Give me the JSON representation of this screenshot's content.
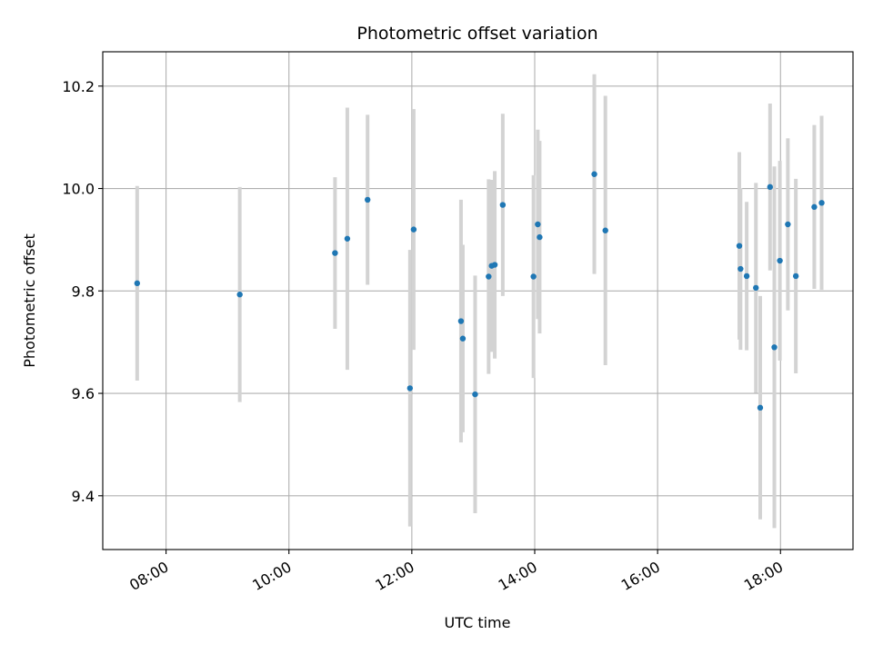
{
  "chart_data": {
    "type": "scatter",
    "title": "Photometric offset variation",
    "xlabel": "UTC time",
    "ylabel": "Photometric offset",
    "x_unit": "UTC time (hours)",
    "xlim": [
      6.97,
      19.18
    ],
    "ylim": [
      9.295,
      10.267
    ],
    "x_ticks": [
      8,
      10,
      12,
      14,
      16,
      18
    ],
    "x_tick_labels": [
      "08:00",
      "10:00",
      "12:00",
      "14:00",
      "16:00",
      "18:00"
    ],
    "y_ticks": [
      9.4,
      9.6,
      9.8,
      10.0,
      10.2
    ],
    "y_tick_labels": [
      "9.4",
      "9.6",
      "9.8",
      "10.0",
      "10.2"
    ],
    "grid": true,
    "marker_color": "#1f77b4",
    "errorbar_color": "#d3d3d3",
    "points": [
      {
        "x": 7.53,
        "y": 9.815,
        "err": 0.19
      },
      {
        "x": 9.2,
        "y": 9.793,
        "err": 0.21
      },
      {
        "x": 10.75,
        "y": 9.874,
        "err": 0.148
      },
      {
        "x": 10.95,
        "y": 9.902,
        "err": 0.256
      },
      {
        "x": 11.28,
        "y": 9.978,
        "err": 0.166
      },
      {
        "x": 11.97,
        "y": 9.61,
        "err": 0.27
      },
      {
        "x": 12.03,
        "y": 9.92,
        "err": 0.235
      },
      {
        "x": 12.8,
        "y": 9.741,
        "err": 0.237
      },
      {
        "x": 12.83,
        "y": 9.707,
        "err": 0.183
      },
      {
        "x": 13.03,
        "y": 9.598,
        "err": 0.232
      },
      {
        "x": 13.25,
        "y": 9.828,
        "err": 0.19
      },
      {
        "x": 13.3,
        "y": 9.849,
        "err": 0.168
      },
      {
        "x": 13.35,
        "y": 9.851,
        "err": 0.183
      },
      {
        "x": 13.48,
        "y": 9.968,
        "err": 0.178
      },
      {
        "x": 13.98,
        "y": 9.828,
        "err": 0.198
      },
      {
        "x": 14.05,
        "y": 9.93,
        "err": 0.185
      },
      {
        "x": 14.08,
        "y": 9.905,
        "err": 0.188
      },
      {
        "x": 14.97,
        "y": 10.028,
        "err": 0.195
      },
      {
        "x": 15.15,
        "y": 9.918,
        "err": 0.263
      },
      {
        "x": 17.33,
        "y": 9.888,
        "err": 0.183
      },
      {
        "x": 17.35,
        "y": 9.843,
        "err": 0.158
      },
      {
        "x": 17.45,
        "y": 9.829,
        "err": 0.145
      },
      {
        "x": 17.6,
        "y": 9.806,
        "err": 0.205
      },
      {
        "x": 17.67,
        "y": 9.572,
        "err": 0.218
      },
      {
        "x": 17.83,
        "y": 10.003,
        "err": 0.163
      },
      {
        "x": 17.9,
        "y": 9.69,
        "err": 0.353
      },
      {
        "x": 17.99,
        "y": 9.859,
        "err": 0.195
      },
      {
        "x": 18.12,
        "y": 9.93,
        "err": 0.168
      },
      {
        "x": 18.25,
        "y": 9.829,
        "err": 0.19
      },
      {
        "x": 18.55,
        "y": 9.964,
        "err": 0.16
      },
      {
        "x": 18.67,
        "y": 9.972,
        "err": 0.17
      }
    ]
  }
}
